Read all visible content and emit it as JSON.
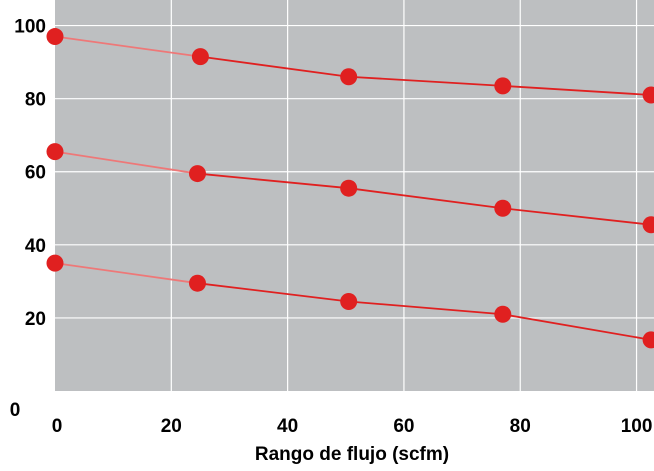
{
  "chart_data": {
    "type": "line",
    "title": "",
    "xlabel": "Rango de flujo (scfm)",
    "ylabel": "",
    "xlim": [
      0,
      103
    ],
    "ylim": [
      0,
      107
    ],
    "x_ticks": [
      0,
      20,
      40,
      60,
      80,
      100
    ],
    "y_ticks": [
      0,
      20,
      40,
      60,
      80,
      100
    ],
    "grid": true,
    "colors": {
      "plot_background": "#bdbfc1",
      "grid": "#ffffff",
      "series": "#e02020",
      "series_first_segment": "#ee7878"
    },
    "series": [
      {
        "x": [
          0,
          25,
          50.5,
          77,
          102.5
        ],
        "y": [
          97,
          91.5,
          86,
          83.5,
          81
        ]
      },
      {
        "x": [
          0,
          24.5,
          50.5,
          77,
          102.5
        ],
        "y": [
          65.5,
          59.5,
          55.5,
          50,
          45.5
        ]
      },
      {
        "x": [
          0,
          24.5,
          50.5,
          77,
          102.5
        ],
        "y": [
          35,
          29.5,
          24.5,
          21,
          14
        ]
      }
    ]
  }
}
